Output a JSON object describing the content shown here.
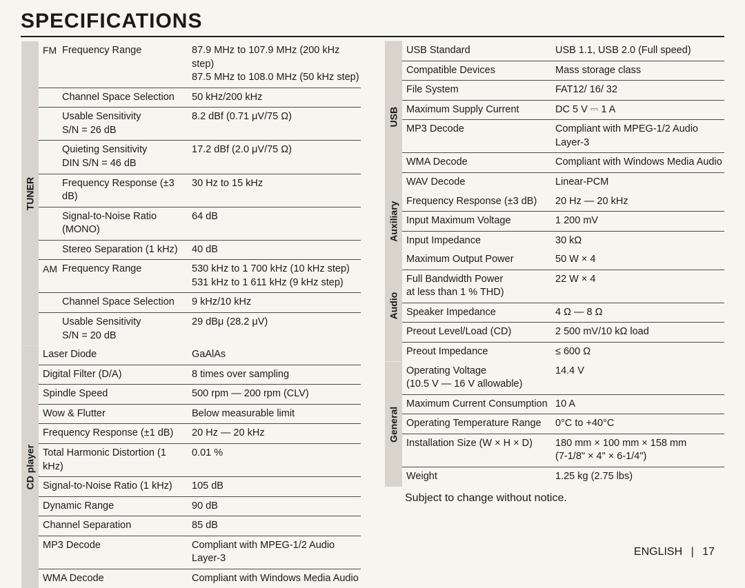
{
  "title": "SPECIFICATIONS",
  "note": "Subject to change without notice.",
  "footer": {
    "lang": "ENGLISH",
    "page": "17"
  },
  "left": [
    {
      "cat": "TUNER",
      "rows": [
        {
          "sub": "FM",
          "label": "Frequency Range",
          "value": "87.9 MHz to 107.9 MHz (200 kHz step)\n87.5 MHz to 108.0 MHz (50 kHz step)"
        },
        {
          "sub": "",
          "label": "Channel Space Selection",
          "value": "50 kHz/200 kHz"
        },
        {
          "sub": "",
          "label": "Usable Sensitivity\nS/N = 26 dB",
          "value": "8.2 dBf (0.71 μV/75 Ω)"
        },
        {
          "sub": "",
          "label": "Quieting Sensitivity\nDIN S/N = 46 dB",
          "value": "17.2 dBf (2.0 μV/75 Ω)"
        },
        {
          "sub": "",
          "label": "Frequency Response (±3 dB)",
          "value": "30 Hz to 15 kHz"
        },
        {
          "sub": "",
          "label": "Signal-to-Noise Ratio (MONO)",
          "value": "64 dB"
        },
        {
          "sub": "",
          "label": "Stereo Separation (1 kHz)",
          "value": "40 dB"
        },
        {
          "sub": "AM",
          "label": "Frequency Range",
          "value": "530 kHz to 1 700 kHz (10 kHz step)\n531 kHz to 1 611 kHz (9 kHz step)"
        },
        {
          "sub": "",
          "label": "Channel Space Selection",
          "value": "9 kHz/10 kHz"
        },
        {
          "sub": "",
          "label": "Usable Sensitivity\nS/N = 20 dB",
          "value": "29 dBμ (28.2 μV)"
        }
      ]
    },
    {
      "cat": "CD player",
      "rows": [
        {
          "sub": "",
          "label": "Laser Diode",
          "value": "GaAlAs"
        },
        {
          "sub": "",
          "label": "Digital Filter (D/A)",
          "value": "8 times over sampling"
        },
        {
          "sub": "",
          "label": "Spindle Speed",
          "value": "500 rpm — 200 rpm (CLV)"
        },
        {
          "sub": "",
          "label": "Wow & Flutter",
          "value": "Below measurable limit"
        },
        {
          "sub": "",
          "label": "Frequency Response (±1 dB)",
          "value": "20 Hz — 20 kHz"
        },
        {
          "sub": "",
          "label": "Total Harmonic Distortion (1 kHz)",
          "value": "0.01 %"
        },
        {
          "sub": "",
          "label": "Signal-to-Noise Ratio (1 kHz)",
          "value": "105 dB"
        },
        {
          "sub": "",
          "label": "Dynamic Range",
          "value": "90 dB"
        },
        {
          "sub": "",
          "label": "Channel Separation",
          "value": "85 dB"
        },
        {
          "sub": "",
          "label": "MP3 Decode",
          "value": "Compliant with MPEG-1/2 Audio Layer-3"
        },
        {
          "sub": "",
          "label": "WMA Decode",
          "value": "Compliant with Windows Media Audio"
        }
      ]
    }
  ],
  "right": [
    {
      "cat": "USB",
      "rows": [
        {
          "sub": "",
          "label": "USB Standard",
          "value": "USB 1.1, USB 2.0 (Full speed)"
        },
        {
          "sub": "",
          "label": "Compatible Devices",
          "value": "Mass storage class"
        },
        {
          "sub": "",
          "label": "File System",
          "value": "FAT12/ 16/ 32"
        },
        {
          "sub": "",
          "label": "Maximum Supply Current",
          "value": "DC 5 V ⎓ 1 A"
        },
        {
          "sub": "",
          "label": "MP3 Decode",
          "value": "Compliant with MPEG-1/2 Audio Layer-3"
        },
        {
          "sub": "",
          "label": "WMA Decode",
          "value": "Compliant with Windows Media Audio"
        },
        {
          "sub": "",
          "label": "WAV Decode",
          "value": "Linear-PCM"
        }
      ]
    },
    {
      "cat": "Auxiliary",
      "rows": [
        {
          "sub": "",
          "label": "Frequency Response (±3 dB)",
          "value": "20 Hz — 20 kHz"
        },
        {
          "sub": "",
          "label": "Input Maximum Voltage",
          "value": "1 200 mV"
        },
        {
          "sub": "",
          "label": "Input Impedance",
          "value": "30 kΩ"
        }
      ]
    },
    {
      "cat": "Audio",
      "rows": [
        {
          "sub": "",
          "label": "Maximum Output Power",
          "value": "50 W × 4"
        },
        {
          "sub": "",
          "label": "Full Bandwidth Power\nat less than 1 % THD)",
          "value": "22 W × 4"
        },
        {
          "sub": "",
          "label": "Speaker Impedance",
          "value": "4 Ω — 8 Ω"
        },
        {
          "sub": "",
          "label": "Preout Level/Load (CD)",
          "value": "2 500 mV/10 kΩ load"
        },
        {
          "sub": "",
          "label": "Preout Impedance",
          "value": "≤ 600 Ω"
        }
      ]
    },
    {
      "cat": "General",
      "rows": [
        {
          "sub": "",
          "label": "Operating Voltage\n(10.5 V — 16 V allowable)",
          "value": "14.4 V"
        },
        {
          "sub": "",
          "label": "Maximum Current Consumption",
          "value": "10 A"
        },
        {
          "sub": "",
          "label": "Operating Temperature Range",
          "value": "0°C to +40°C"
        },
        {
          "sub": "",
          "label": "Installation Size (W × H × D)",
          "value": "180 mm × 100 mm × 158 mm\n(7-1/8\" × 4\" × 6-1/4\")"
        },
        {
          "sub": "",
          "label": "Weight",
          "value": "1.25 kg (2.75 lbs)"
        }
      ]
    }
  ]
}
